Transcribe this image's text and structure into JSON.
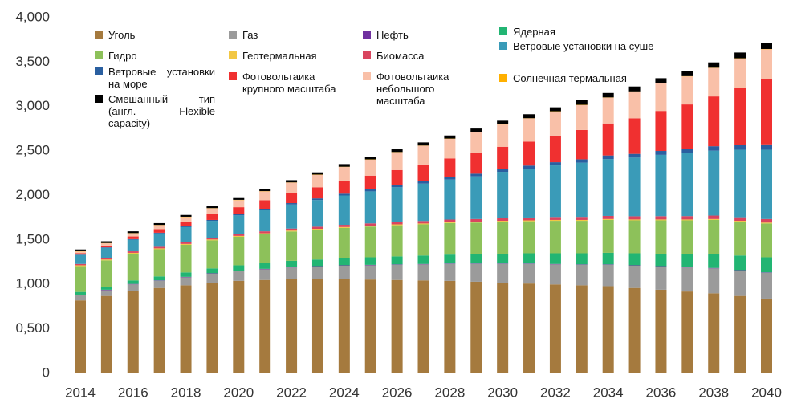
{
  "chart_data": {
    "type": "stacked_bar",
    "categories": [
      "2014",
      null,
      "2016",
      null,
      "2018",
      null,
      "2020",
      null,
      "2022",
      null,
      "2024",
      null,
      "2026",
      null,
      "2028",
      null,
      "2030",
      null,
      "2032",
      null,
      "2034",
      null,
      "2036",
      null,
      "2038",
      null,
      "2040"
    ],
    "ylim": [
      0,
      4000
    ],
    "yticks": [
      0,
      {
        "value": 500,
        "label": "0,500"
      },
      {
        "value": 1000,
        "label": "1,000"
      },
      {
        "value": 1500,
        "label": "1,500"
      },
      {
        "value": 2000,
        "label": "2,000"
      },
      {
        "value": 2500,
        "label": "2,500"
      },
      {
        "value": 3000,
        "label": "3,000"
      },
      {
        "value": 3500,
        "label": "3,500"
      },
      {
        "value": 4000,
        "label": "4,000"
      }
    ],
    "grid": false,
    "series": [
      {
        "name": "Уголь",
        "color": "#a57a3e",
        "values": [
          820,
          870,
          930,
          960,
          990,
          1020,
          1040,
          1050,
          1060,
          1060,
          1060,
          1055,
          1050,
          1045,
          1040,
          1030,
          1020,
          1010,
          1000,
          990,
          980,
          960,
          940,
          920,
          900,
          870,
          840
        ]
      },
      {
        "name": "Газ",
        "color": "#9b9b9b",
        "values": [
          60,
          65,
          70,
          80,
          90,
          100,
          110,
          120,
          130,
          140,
          150,
          160,
          170,
          180,
          190,
          200,
          210,
          220,
          225,
          230,
          240,
          250,
          260,
          270,
          280,
          285,
          290
        ]
      },
      {
        "name": "Нефть",
        "color": "#7030a0",
        "values": [
          5,
          5,
          5,
          5,
          5,
          5,
          5,
          5,
          5,
          5,
          5,
          5,
          5,
          5,
          5,
          5,
          5,
          5,
          5,
          5,
          5,
          5,
          5,
          5,
          5,
          5,
          5
        ]
      },
      {
        "name": "Ядерная",
        "color": "#22b573",
        "values": [
          30,
          35,
          40,
          45,
          50,
          55,
          60,
          65,
          70,
          75,
          80,
          85,
          90,
          95,
          100,
          105,
          110,
          115,
          120,
          125,
          130,
          135,
          140,
          150,
          160,
          165,
          170
        ]
      },
      {
        "name": "Гидро",
        "color": "#8dc15a",
        "values": [
          290,
          295,
          300,
          305,
          310,
          315,
          320,
          325,
          330,
          335,
          340,
          345,
          350,
          350,
          355,
          355,
          360,
          360,
          365,
          365,
          370,
          370,
          375,
          375,
          380,
          380,
          380
        ]
      },
      {
        "name": "Геотермальная",
        "color": "#f2c744",
        "values": [
          10,
          10,
          10,
          10,
          10,
          10,
          10,
          10,
          10,
          10,
          10,
          10,
          10,
          10,
          10,
          10,
          10,
          10,
          10,
          10,
          10,
          10,
          10,
          10,
          10,
          10,
          10
        ]
      },
      {
        "name": "Биомасса",
        "color": "#d9455f",
        "values": [
          15,
          16,
          17,
          18,
          19,
          20,
          21,
          22,
          23,
          24,
          25,
          26,
          27,
          28,
          29,
          30,
          31,
          32,
          33,
          34,
          35,
          36,
          37,
          38,
          39,
          40,
          40
        ]
      },
      {
        "name": "Ветровые установки на суше",
        "color": "#3a9bb8",
        "values": [
          100,
          115,
          130,
          150,
          170,
          190,
          210,
          240,
          270,
          300,
          330,
          360,
          390,
          420,
          450,
          480,
          520,
          550,
          580,
          610,
          640,
          660,
          690,
          710,
          730,
          760,
          780
        ]
      },
      {
        "name": "Ветровые установки на море",
        "color": "#2a5fa0",
        "values": [
          5,
          6,
          7,
          8,
          9,
          10,
          12,
          14,
          16,
          18,
          20,
          22,
          24,
          26,
          28,
          30,
          32,
          34,
          36,
          38,
          40,
          42,
          44,
          46,
          50,
          55,
          60
        ]
      },
      {
        "name": "Фотовольтаика крупного масштаба",
        "color": "#f03030",
        "values": [
          15,
          20,
          30,
          40,
          50,
          65,
          80,
          95,
          110,
          125,
          140,
          155,
          170,
          190,
          210,
          230,
          250,
          270,
          300,
          330,
          360,
          400,
          450,
          500,
          560,
          640,
          730
        ]
      },
      {
        "name": "Фотовольтаика небольшого масштаба",
        "color": "#f9c0a8",
        "values": [
          20,
          25,
          35,
          45,
          55,
          65,
          80,
          100,
          120,
          140,
          160,
          180,
          200,
          210,
          220,
          235,
          250,
          260,
          270,
          280,
          290,
          300,
          310,
          315,
          320,
          330,
          340
        ]
      },
      {
        "name": "Солнечная термальная",
        "color": "#ffb000",
        "values": [
          3,
          3,
          3,
          3,
          3,
          3,
          3,
          3,
          3,
          3,
          3,
          3,
          3,
          3,
          3,
          3,
          3,
          3,
          3,
          3,
          3,
          3,
          3,
          3,
          3,
          3,
          3
        ]
      },
      {
        "name": "Смешанный тип (англ. Flexible capacity)",
        "color": "#000000",
        "values": [
          20,
          20,
          20,
          20,
          20,
          20,
          20,
          25,
          25,
          25,
          30,
          30,
          30,
          35,
          35,
          40,
          40,
          45,
          45,
          50,
          50,
          55,
          55,
          60,
          60,
          65,
          70
        ]
      }
    ]
  }
}
